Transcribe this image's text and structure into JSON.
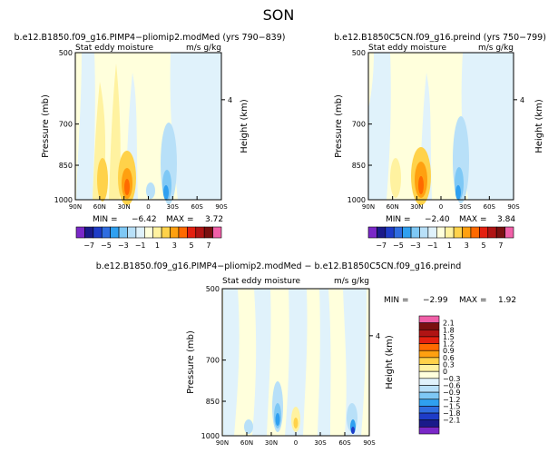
{
  "chart_data": {
    "season": "SON",
    "panels": [
      {
        "type": "heatmap",
        "title": "b.e12.B1850.f09_g16.PIMP4−pliomip2.modMed (yrs 790−839)",
        "subtitle_left": "Stat eddy moisture",
        "subtitle_right": "m/s g/kg",
        "ylabel": "Pressure (mb)",
        "y2label": "Height (km)",
        "x_ticks": [
          "90N",
          "60N",
          "30N",
          "0",
          "30S",
          "60S",
          "90S"
        ],
        "y_ticks": [
          "500",
          "700",
          "850",
          "1000"
        ],
        "y2_ticks": [
          "4"
        ],
        "stats": {
          "min_label": "MIN =",
          "min": "−6.42",
          "max_label": "MAX =",
          "max": "3.72"
        },
        "min": -6.42,
        "max": 3.72,
        "colorbar": "A"
      },
      {
        "type": "heatmap",
        "title": "b.e12.B1850C5CN.f09_g16.preind (yrs 750−799)",
        "subtitle_left": "Stat eddy moisture",
        "subtitle_right": "m/s g/kg",
        "ylabel": "Pressure (mb)",
        "y2label": "Height (km)",
        "x_ticks": [
          "90N",
          "60N",
          "30N",
          "0",
          "30S",
          "60S",
          "90S"
        ],
        "y_ticks": [
          "500",
          "700",
          "850",
          "1000"
        ],
        "y2_ticks": [
          "4"
        ],
        "stats": {
          "min_label": "MIN =",
          "min": "−2.40",
          "max_label": "MAX =",
          "max": "3.84"
        },
        "min": -2.4,
        "max": 3.84,
        "colorbar": "A"
      },
      {
        "type": "heatmap",
        "title": "b.e12.B1850.f09_g16.PIMP4−pliomip2.modMed − b.e12.B1850C5CN.f09_g16.preind",
        "subtitle_left": "Stat eddy moisture",
        "subtitle_right": "m/s g/kg",
        "ylabel": "Pressure (mb)",
        "y2label": "Height (km)",
        "x_ticks": [
          "90N",
          "60N",
          "30N",
          "0",
          "30S",
          "60S",
          "90S"
        ],
        "y_ticks": [
          "500",
          "700",
          "850",
          "1000"
        ],
        "y2_ticks": [
          "4"
        ],
        "stats": {
          "min_label": "MIN =",
          "min": "−2.99",
          "max_label": "MAX =",
          "max": "1.92"
        },
        "min": -2.99,
        "max": 1.92,
        "colorbar": "B"
      }
    ],
    "colorbar_A": {
      "labels": [
        "−7",
        "−5",
        "−3",
        "−1",
        "1",
        "3",
        "5",
        "7"
      ],
      "colors": [
        "#7a28c8",
        "#1a1a8a",
        "#1e3cc8",
        "#2f6de0",
        "#2fa0f0",
        "#7ec8f5",
        "#b8e0f8",
        "#e0f2fb",
        "#ffffdc",
        "#fff2a0",
        "#ffd24a",
        "#ffa010",
        "#ff6a00",
        "#e42010",
        "#b01414",
        "#7a1010",
        "#f060a8"
      ]
    },
    "colorbar_B": {
      "labels": [
        "2.1",
        "1.8",
        "1.5",
        "1.2",
        "0.9",
        "0.6",
        "0.3",
        "0",
        "−0.3",
        "−0.6",
        "−0.9",
        "−1.2",
        "−1.5",
        "−1.8",
        "−2.1"
      ],
      "colors": [
        "#f060a8",
        "#7a1010",
        "#b01414",
        "#e42010",
        "#ff6a00",
        "#ffa010",
        "#ffd24a",
        "#fff2a0",
        "#ffffdc",
        "#e0f2fb",
        "#b8e0f8",
        "#7ec8f5",
        "#2fa0f0",
        "#2f6de0",
        "#1e3cc8",
        "#1a1a8a",
        "#7a28c8"
      ]
    }
  }
}
